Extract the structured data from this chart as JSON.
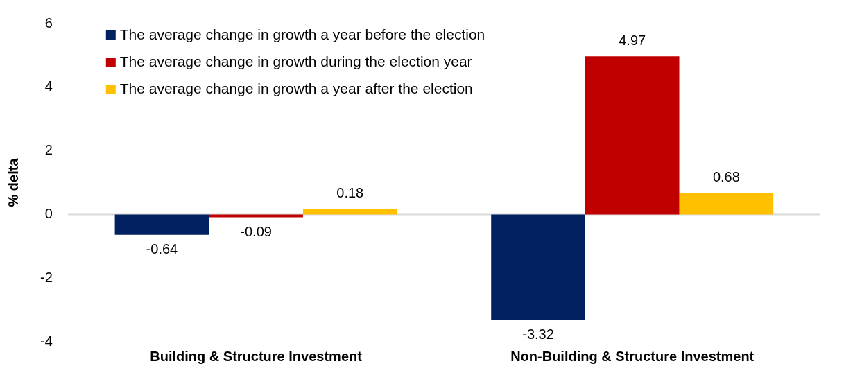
{
  "chart_data": {
    "type": "bar",
    "ylabel": "% delta",
    "categories": [
      "Building & Structure Investment",
      "Non-Building & Structure Investment"
    ],
    "series": [
      {
        "name": "The average change in growth a year before the election",
        "color": "#002060",
        "values": [
          -0.64,
          -3.32
        ]
      },
      {
        "name": "The average change in growth during the election year",
        "color": "#c00000",
        "values": [
          -0.09,
          4.97
        ]
      },
      {
        "name": "The average change in growth a year after the election",
        "color": "#ffc000",
        "values": [
          0.18,
          0.68
        ]
      }
    ],
    "ylim": [
      -4,
      6
    ],
    "yticks": [
      -4,
      -2,
      0,
      2,
      4,
      6
    ],
    "grid": false,
    "ref_lines": [
      {
        "axis": "y",
        "value": 0,
        "color": "#d9d9d9"
      }
    ],
    "legend": "top left",
    "data_labels": true
  }
}
